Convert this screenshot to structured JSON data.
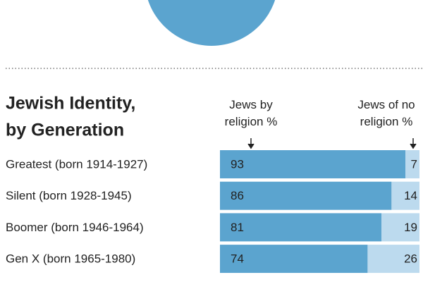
{
  "chart_data": {
    "type": "stacked-bar",
    "title": [
      "Jewish Identity,",
      "by Generation"
    ],
    "categories": [
      "Greatest (born 1914-1927)",
      "Silent (born 1928-1945)",
      "Boomer (born 1946-1964)",
      "Gen X (born 1965-1980)"
    ],
    "series": [
      {
        "name": "Jews by religion %",
        "color": "#5ba4cf",
        "values": [
          93,
          86,
          81,
          74
        ]
      },
      {
        "name": "Jews of no religion %",
        "color": "#bcdaee",
        "values": [
          7,
          14,
          19,
          26
        ]
      }
    ],
    "xlim": [
      0,
      100
    ]
  }
}
